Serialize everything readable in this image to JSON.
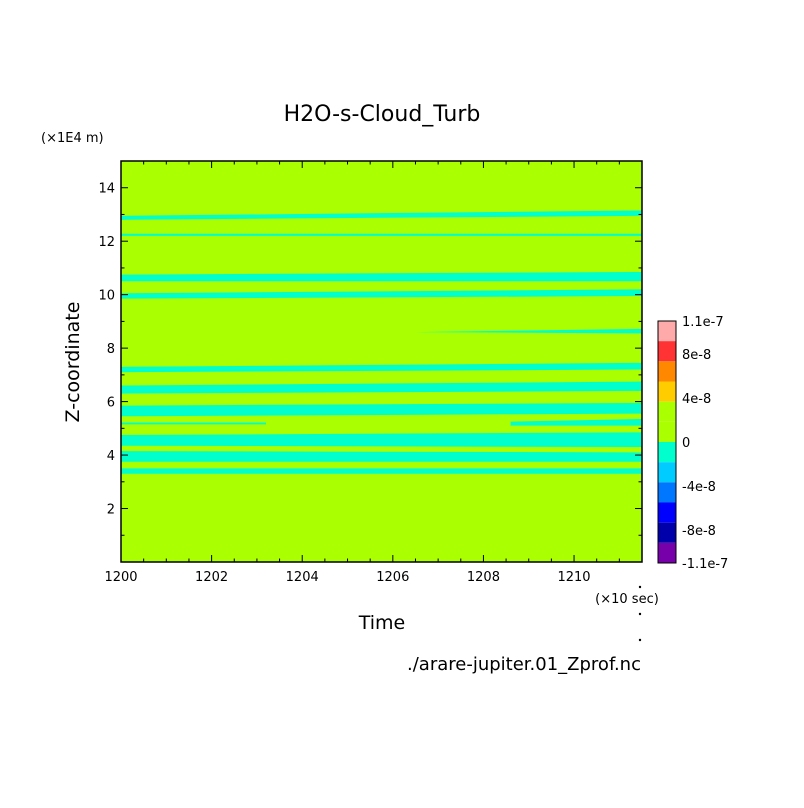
{
  "chart_data": {
    "type": "heatmap",
    "title": "H2O-s-Cloud_Turb",
    "xlabel": "Time",
    "ylabel": "Z-coordinate",
    "x_unit_label": "(×10 sec)",
    "y_unit_label": "(×1E4 m)",
    "xlim": [
      1200,
      1211.5
    ],
    "ylim": [
      0,
      15
    ],
    "x_ticks": [
      "1200",
      "1202",
      "1204",
      "1206",
      "1208",
      "1210"
    ],
    "y_ticks": [
      "2",
      "4",
      "6",
      "8",
      "10",
      "12",
      "14"
    ],
    "background_value": 0,
    "background_color": "#aaff00",
    "bands": [
      {
        "value": -2e-08,
        "color": "#00ffcc",
        "y_left": [
          12.8,
          12.95
        ],
        "y_right": [
          12.95,
          13.15
        ],
        "x_start": 1200,
        "x_end": 1211.5
      },
      {
        "value": -2e-08,
        "color": "#00ffcc",
        "y_left": [
          12.2,
          12.28
        ],
        "y_right": [
          12.2,
          12.28
        ],
        "x_start": 1200,
        "x_end": 1211.5
      },
      {
        "value": -2e-08,
        "color": "#00ffcc",
        "y_left": [
          10.5,
          10.75
        ],
        "y_right": [
          10.5,
          10.85
        ],
        "x_start": 1200,
        "x_end": 1211.5
      },
      {
        "value": -2e-08,
        "color": "#00ffcc",
        "y_left": [
          9.85,
          10.05
        ],
        "y_right": [
          9.95,
          10.2
        ],
        "x_start": 1200,
        "x_end": 1211.5
      },
      {
        "value": -2e-08,
        "color": "#00ffcc",
        "y_left": [
          8.6,
          8.6
        ],
        "y_right": [
          8.55,
          8.72
        ],
        "x_start": 1206.5,
        "x_end": 1211.5
      },
      {
        "value": -2e-08,
        "color": "#00ffcc",
        "y_left": [
          7.1,
          7.3
        ],
        "y_right": [
          7.2,
          7.45
        ],
        "x_start": 1200,
        "x_end": 1211.5
      },
      {
        "value": -2e-08,
        "color": "#00ffcc",
        "y_left": [
          6.3,
          6.6
        ],
        "y_right": [
          6.4,
          6.75
        ],
        "x_start": 1200,
        "x_end": 1211.5
      },
      {
        "value": -2e-08,
        "color": "#00ffcc",
        "y_left": [
          5.45,
          5.85
        ],
        "y_right": [
          5.55,
          5.95
        ],
        "x_start": 1200,
        "x_end": 1211.5
      },
      {
        "value": -2e-08,
        "color": "#00ffcc",
        "y_left": [
          5.15,
          5.22
        ],
        "y_right": [
          5.15,
          5.22
        ],
        "x_start": 1200,
        "x_end": 1203.2
      },
      {
        "value": -2e-08,
        "color": "#00ffcc",
        "y_left": [
          5.1,
          5.25
        ],
        "y_right": [
          5.1,
          5.35
        ],
        "x_start": 1208.6,
        "x_end": 1211.5
      },
      {
        "value": -2e-08,
        "color": "#00ffcc",
        "y_left": [
          4.35,
          4.75
        ],
        "y_right": [
          4.3,
          4.85
        ],
        "x_start": 1200,
        "x_end": 1211.5
      },
      {
        "value": -2e-08,
        "color": "#00ffcc",
        "y_left": [
          3.75,
          4.15
        ],
        "y_right": [
          3.75,
          4.1
        ],
        "x_start": 1200,
        "x_end": 1211.5
      },
      {
        "value": -2e-08,
        "color": "#00ffcc",
        "y_left": [
          3.3,
          3.5
        ],
        "y_right": [
          3.3,
          3.5
        ],
        "x_start": 1200,
        "x_end": 1211.5
      }
    ],
    "colorbar": {
      "labels": [
        "1.1e-7",
        "8e-8",
        "4e-8",
        "0",
        "-4e-8",
        "-8e-8",
        "-1.1e-7"
      ],
      "label_values": [
        1.1e-07,
        8e-08,
        4e-08,
        0,
        -4e-08,
        -8e-08,
        -1.1e-07
      ],
      "levels_top_to_bottom": [
        {
          "color": "#ffaaaa"
        },
        {
          "color": "#ff3333"
        },
        {
          "color": "#ff8800"
        },
        {
          "color": "#ffcc00"
        },
        {
          "color": "#aaff00"
        },
        {
          "color": "#aaff00"
        },
        {
          "color": "#00ffcc"
        },
        {
          "color": "#00ccff"
        },
        {
          "color": "#0077ff"
        },
        {
          "color": "#0000ff"
        },
        {
          "color": "#0000aa"
        },
        {
          "color": "#7700aa"
        }
      ]
    },
    "grid": false,
    "legend": "right"
  },
  "file_label": "./arare-jupiter.01_Zprof.nc"
}
